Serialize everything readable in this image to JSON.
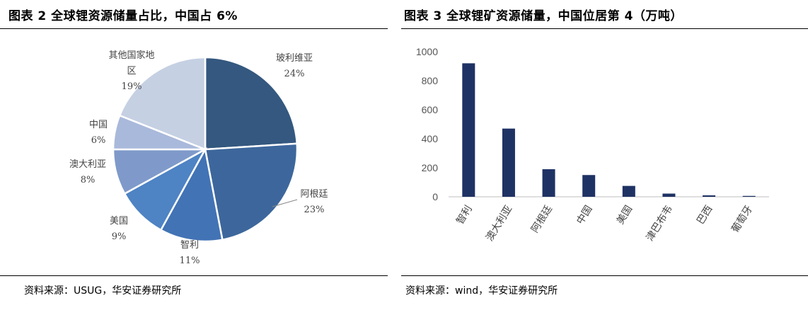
{
  "left": {
    "title": "图表 2 全球锂资源储量占比，中国占 6%",
    "source": "资料来源：USUG，华安证券研究所"
  },
  "right": {
    "title": "图表 3 全球锂矿资源储量，中国位居第 4（万吨）",
    "source": "资料来源：wind，华安证券研究所"
  },
  "chart_data": [
    {
      "type": "pie",
      "title": "图表 2 全球锂资源储量占比，中国占 6%",
      "labels": [
        "玻利维亚",
        "阿根廷",
        "智利",
        "美国",
        "澳大利亚",
        "中国",
        "其他国家地区"
      ],
      "label_lines": [
        [
          "玻利维亚"
        ],
        [
          "阿根廷"
        ],
        [
          "智利"
        ],
        [
          "美国"
        ],
        [
          "澳大利亚"
        ],
        [
          "中国"
        ],
        [
          "其他国家地",
          "区"
        ]
      ],
      "pct_labels": [
        "24%",
        "23%",
        "11%",
        "9%",
        "8%",
        "6%",
        "19%"
      ],
      "values": [
        24,
        23,
        11,
        9,
        8,
        6,
        19
      ],
      "colors": [
        "#34587F",
        "#3D679C",
        "#4273B5",
        "#4E83C4",
        "#7F9ACA",
        "#A9B9DB",
        "#C5D0E3"
      ]
    },
    {
      "type": "bar",
      "title": "图表 3 全球锂矿资源储量，中国位居第 4（万吨）",
      "categories": [
        "智利",
        "澳大利亚",
        "阿根廷",
        "中国",
        "美国",
        "津巴布韦",
        "巴西",
        "葡萄牙"
      ],
      "values": [
        920,
        470,
        190,
        150,
        75,
        22,
        10,
        6
      ],
      "ylim": [
        0,
        1000
      ],
      "yticks": [
        0,
        200,
        400,
        600,
        800,
        1000
      ],
      "bar_color": "#1F3264",
      "grid": false
    }
  ]
}
